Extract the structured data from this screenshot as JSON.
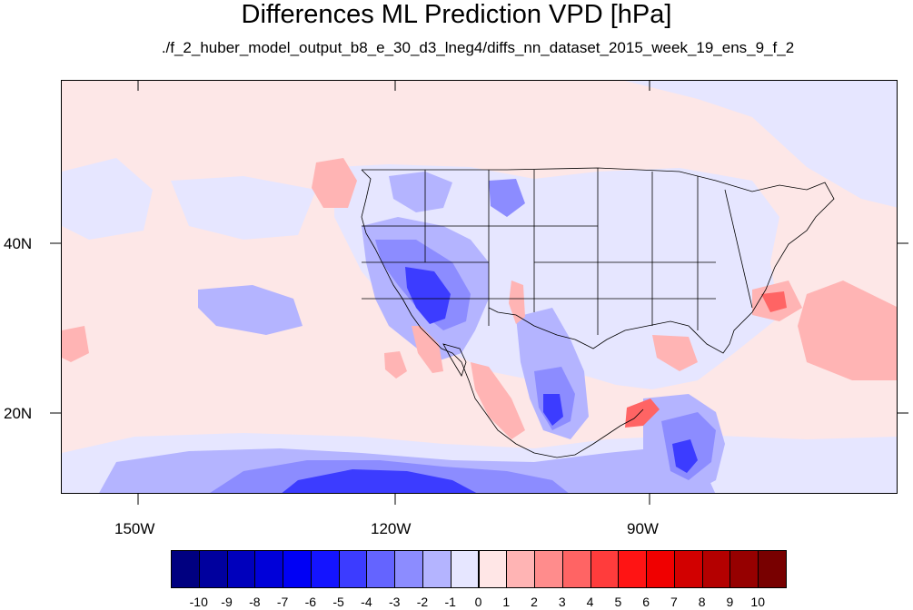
{
  "title": "Differences ML Prediction VPD [hPa]",
  "subtitle": "./f_2_huber_model_output_b8_e_30_d3_lneg4/diffs_nn_dataset_2015_week_19_ens_9_f_2",
  "axes": {
    "lon_labels": [
      "150W",
      "120W",
      "90W"
    ],
    "lat_labels": [
      "40N",
      "20N"
    ],
    "lon_range": [
      -159,
      -60
    ],
    "lat_range": [
      10.5,
      59.5
    ]
  },
  "colorbar": {
    "labels": [
      "-10",
      "-9",
      "-8",
      "-7",
      "-6",
      "-5",
      "-4",
      "-3",
      "-2",
      "-1",
      "0",
      "1",
      "2",
      "3",
      "4",
      "5",
      "6",
      "7",
      "8",
      "9",
      "10"
    ],
    "colors": [
      "#000080",
      "#00009e",
      "#0000bc",
      "#0000d9",
      "#0000f5",
      "#1414ff",
      "#3c3cff",
      "#6464ff",
      "#8c8cff",
      "#b4b4ff",
      "#e6e6ff",
      "#ffe6e6",
      "#ffb4b4",
      "#ff8c8c",
      "#ff6464",
      "#ff3c3c",
      "#ff1414",
      "#f00000",
      "#d20000",
      "#b40000",
      "#960000",
      "#780000"
    ]
  },
  "colors": {
    "background_field": "#fde7e7",
    "light_blue": "#e6e6ff",
    "mid_blue": "#b4b4ff",
    "blue": "#8c8cff",
    "strong_blue": "#3c3cff",
    "light_red": "#ffb4b4",
    "red": "#ff6464"
  }
}
